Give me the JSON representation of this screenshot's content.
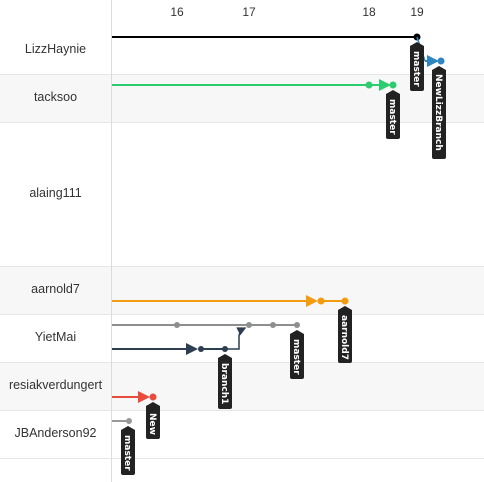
{
  "dates": [
    "16",
    "17",
    "18",
    "19"
  ],
  "users": [
    "LizzHaynie",
    "tacksoo",
    "alaing111",
    "aarnold7",
    "YietMai",
    "resiakverdungert",
    "JBAnderson92"
  ],
  "branch_labels": {
    "lizz_master": "master",
    "lizz_newlizzbranch": "NewLizzBranch",
    "tacksoo_master": "master",
    "aarnold7_branch": "aarnold7",
    "yietmai_master": "master",
    "yietmai_branch1": "branch1",
    "resiak_new": "New",
    "jbanderson_master": "master"
  },
  "colors": {
    "lizz": "#000000",
    "lizz_new": "#2e86c1",
    "tacksoo": "#2ecc71",
    "aarnold7": "#f39c12",
    "yiet_master": "#8e8e8e",
    "yiet_branch": "#2c3e50",
    "resiak": "#e74c3c",
    "jb": "#999999",
    "badge": "#222222"
  }
}
